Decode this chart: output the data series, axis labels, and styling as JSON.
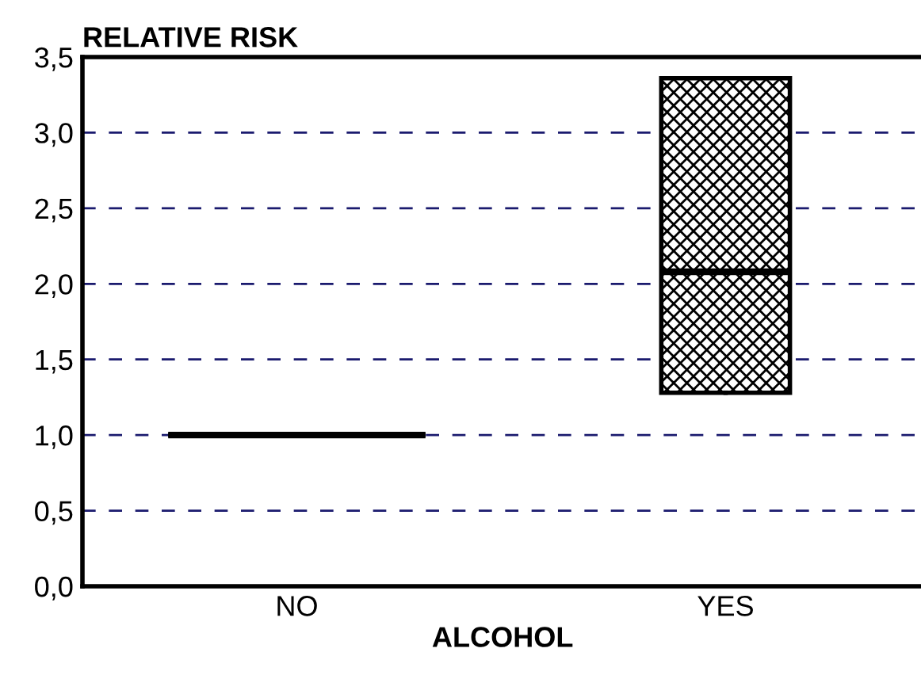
{
  "chart_data": {
    "type": "box",
    "ylabel": "RELATIVE RISK",
    "xlabel": "ALCOHOL",
    "categories": [
      "NO",
      "YES"
    ],
    "color": "#000000",
    "boxes": [
      {
        "low": 1.0,
        "q1": 1.0,
        "median": 1.0,
        "q3": 1.0,
        "high": 1.0
      },
      {
        "low": 1.28,
        "q1": 1.28,
        "median": 2.08,
        "q3": 3.36,
        "high": 3.36
      }
    ],
    "ylim": [
      0,
      3.5
    ],
    "yticks": [
      {
        "value": 0,
        "label": "0,0"
      },
      {
        "value": 0.5,
        "label": "0,5"
      },
      {
        "value": 1,
        "label": "1,0"
      },
      {
        "value": 1.5,
        "label": "1,5"
      },
      {
        "value": 2,
        "label": "2,0"
      },
      {
        "value": 2.5,
        "label": "2,5"
      },
      {
        "value": 3,
        "label": "3,0"
      },
      {
        "value": 3.5,
        "label": "3,5"
      }
    ],
    "grid": "y"
  }
}
